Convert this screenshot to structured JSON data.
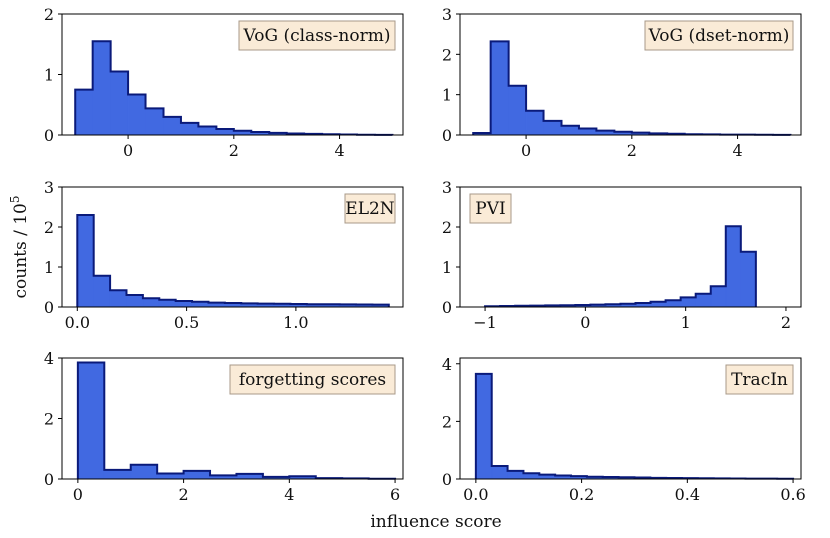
{
  "figure": {
    "xlabel": "influence score",
    "ylabel": "counts / 10",
    "ylabel_exponent": "5"
  },
  "colors": {
    "bar_fill": "#4169e1",
    "bar_edge": "#0a1a7a",
    "legend_bg": "#faebd7",
    "legend_edge": "#a89a88"
  },
  "chart_data": [
    {
      "type": "histogram",
      "label": "VoG (class-norm)",
      "bins": [
        -1.0,
        -0.67,
        -0.33,
        0.0,
        0.33,
        0.67,
        1.0,
        1.33,
        1.67,
        2.0,
        2.33,
        2.67,
        3.0,
        3.33,
        3.67,
        4.0,
        4.33,
        4.67,
        5.0
      ],
      "counts": [
        0.75,
        1.55,
        1.05,
        0.67,
        0.44,
        0.3,
        0.2,
        0.14,
        0.1,
        0.07,
        0.05,
        0.035,
        0.025,
        0.018,
        0.012,
        0.008,
        0.005,
        0.003
      ],
      "xlim": [
        -1.25,
        5.2
      ],
      "ylim": [
        0,
        2
      ],
      "xticks": [
        0,
        2,
        4
      ],
      "xtick_labels": [
        "0",
        "2",
        "4"
      ],
      "yticks": [
        0,
        1,
        2
      ],
      "ytick_labels": [
        "0",
        "1",
        "2"
      ],
      "legend_position": "top-right"
    },
    {
      "type": "histogram",
      "label": "VoG (dset-norm)",
      "bins": [
        -1.0,
        -0.67,
        -0.33,
        0.0,
        0.33,
        0.67,
        1.0,
        1.33,
        1.67,
        2.0,
        2.33,
        2.67,
        3.0,
        3.33,
        3.67,
        4.0,
        4.33,
        4.67,
        5.0
      ],
      "counts": [
        0.05,
        2.32,
        1.22,
        0.6,
        0.35,
        0.23,
        0.16,
        0.11,
        0.08,
        0.06,
        0.04,
        0.03,
        0.02,
        0.015,
        0.01,
        0.008,
        0.005,
        0.003
      ],
      "xlim": [
        -1.25,
        5.2
      ],
      "ylim": [
        0,
        3
      ],
      "xticks": [
        0,
        2,
        4
      ],
      "xtick_labels": [
        "0",
        "2",
        "4"
      ],
      "yticks": [
        0,
        1,
        2,
        3
      ],
      "ytick_labels": [
        "0",
        "1",
        "2",
        "3"
      ],
      "legend_position": "top-right"
    },
    {
      "type": "histogram",
      "label": "EL2N",
      "bins": [
        0.0,
        0.075,
        0.15,
        0.225,
        0.3,
        0.375,
        0.45,
        0.525,
        0.6,
        0.675,
        0.75,
        0.825,
        0.9,
        0.975,
        1.05,
        1.125,
        1.2,
        1.275,
        1.35,
        1.425
      ],
      "counts": [
        2.3,
        0.78,
        0.42,
        0.3,
        0.22,
        0.18,
        0.15,
        0.13,
        0.11,
        0.1,
        0.09,
        0.085,
        0.08,
        0.075,
        0.07,
        0.068,
        0.065,
        0.062,
        0.06
      ],
      "xlim": [
        -0.07,
        1.49
      ],
      "ylim": [
        0,
        3
      ],
      "xticks": [
        0.0,
        0.5,
        1.0
      ],
      "xtick_labels": [
        "0.0",
        "0.5",
        "1.0"
      ],
      "yticks": [
        0,
        1,
        2,
        3
      ],
      "ytick_labels": [
        "0",
        "1",
        "2",
        "3"
      ],
      "legend_position": "top-right"
    },
    {
      "type": "histogram",
      "label": "PVI",
      "bins": [
        -1.0,
        -0.85,
        -0.7,
        -0.55,
        -0.4,
        -0.25,
        -0.1,
        0.05,
        0.2,
        0.35,
        0.5,
        0.65,
        0.8,
        0.95,
        1.1,
        1.25,
        1.4,
        1.55,
        1.7
      ],
      "counts": [
        0.02,
        0.025,
        0.03,
        0.035,
        0.04,
        0.045,
        0.05,
        0.06,
        0.07,
        0.08,
        0.1,
        0.13,
        0.17,
        0.24,
        0.33,
        0.52,
        2.02,
        1.38
      ],
      "xlim": [
        -1.25,
        2.15
      ],
      "ylim": [
        0,
        3
      ],
      "xticks": [
        -1,
        0,
        1,
        2
      ],
      "xtick_labels": [
        "−1",
        "0",
        "1",
        "2"
      ],
      "yticks": [
        0,
        1,
        2,
        3
      ],
      "ytick_labels": [
        "0",
        "1",
        "2",
        "3"
      ],
      "legend_position": "top-left"
    },
    {
      "type": "histogram",
      "label": "forgetting scores",
      "bins": [
        0.0,
        0.5,
        1.0,
        1.5,
        2.0,
        2.5,
        3.0,
        3.5,
        4.0,
        4.5,
        5.0,
        5.5,
        6.0
      ],
      "counts": [
        3.85,
        0.3,
        0.47,
        0.18,
        0.27,
        0.12,
        0.17,
        0.07,
        0.09,
        0.03,
        0.02,
        0.01
      ],
      "xlim": [
        -0.3,
        6.15
      ],
      "ylim": [
        0,
        4
      ],
      "xticks": [
        0,
        2,
        4,
        6
      ],
      "xtick_labels": [
        "0",
        "2",
        "4",
        "6"
      ],
      "yticks": [
        0,
        2,
        4
      ],
      "ytick_labels": [
        "0",
        "2",
        "4"
      ],
      "legend_position": "top-right"
    },
    {
      "type": "histogram",
      "label": "TracIn",
      "bins": [
        0.0,
        0.03,
        0.06,
        0.09,
        0.12,
        0.15,
        0.18,
        0.21,
        0.24,
        0.27,
        0.3,
        0.33,
        0.36,
        0.39,
        0.42,
        0.45,
        0.48,
        0.51,
        0.54,
        0.57,
        0.6
      ],
      "counts": [
        3.65,
        0.45,
        0.28,
        0.2,
        0.15,
        0.12,
        0.1,
        0.08,
        0.07,
        0.06,
        0.05,
        0.04,
        0.035,
        0.03,
        0.025,
        0.02,
        0.018,
        0.015,
        0.012,
        0.01
      ],
      "xlim": [
        -0.03,
        0.615
      ],
      "ylim": [
        0,
        4.2
      ],
      "xticks": [
        0.0,
        0.2,
        0.4,
        0.6
      ],
      "xtick_labels": [
        "0.0",
        "0.2",
        "0.4",
        "0.6"
      ],
      "yticks": [
        0,
        2,
        4
      ],
      "ytick_labels": [
        "0",
        "2",
        "4"
      ],
      "legend_position": "top-right"
    }
  ]
}
